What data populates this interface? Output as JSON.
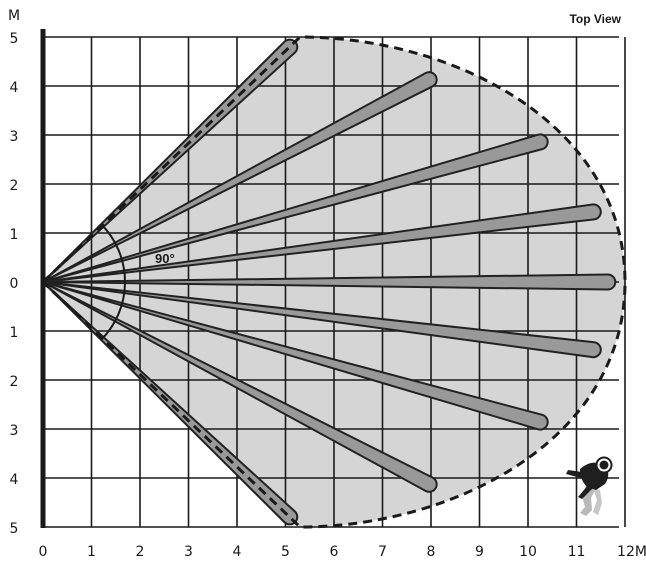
{
  "title": "Top View",
  "y_unit": "M",
  "x_unit_suffix": "M",
  "angle_label": "90°",
  "x_ticks": [
    "0",
    "1",
    "2",
    "3",
    "4",
    "5",
    "6",
    "7",
    "8",
    "9",
    "10",
    "11",
    "12"
  ],
  "y_ticks": [
    "5",
    "4",
    "3",
    "2",
    "1",
    "0",
    "1",
    "2",
    "3",
    "4",
    "5"
  ],
  "beams": [
    {
      "x": 5.2,
      "y": 4.9
    },
    {
      "x": 8.1,
      "y": 4.2
    },
    {
      "x": 10.4,
      "y": 2.9
    },
    {
      "x": 11.5,
      "y": 1.45
    },
    {
      "x": 11.8,
      "y": 0.0
    },
    {
      "x": 11.5,
      "y": -1.4
    },
    {
      "x": 10.4,
      "y": -2.9
    },
    {
      "x": 8.1,
      "y": -4.2
    },
    {
      "x": 5.2,
      "y": -4.9
    }
  ],
  "coverage": {
    "reach_x": 12.0,
    "reach_y": 5.0,
    "fov_degrees": 90
  },
  "colors": {
    "coverage_fill": "#d5d5d5",
    "beam_fill": "#999999",
    "beam_outline": "#222222",
    "boundary": "#1a1a1a",
    "grid": "#1a1a1a"
  },
  "icons": {
    "intruder": "walking-person-icon"
  }
}
